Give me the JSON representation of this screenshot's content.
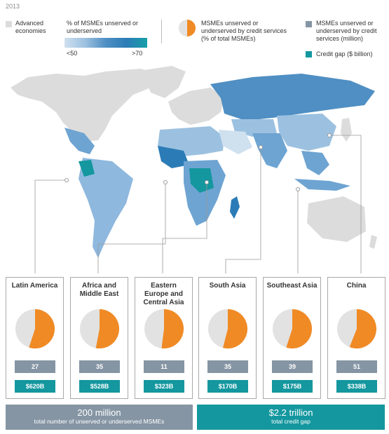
{
  "year": "2013",
  "legend": {
    "advanced_label": "Advanced economies",
    "advanced_color": "#dcdcdc",
    "pct_title": "% of MSMEs unserved or underserved",
    "pct_min_label": "<50",
    "pct_max_label": ">70",
    "pie_label": "MSMEs unserved or underserved by credit services (% of total MSMEs)",
    "count_label": "MSMEs unserved or underserved by credit services (million)",
    "count_color": "#8595a4",
    "gap_label": "Credit gap ($ billion)",
    "gap_color": "#14979f"
  },
  "regions": [
    {
      "name": "Latin America",
      "count": "27",
      "gap": "$620B",
      "share": 0.55
    },
    {
      "name": "Africa and Middle East",
      "count": "35",
      "gap": "$528B",
      "share": 0.53
    },
    {
      "name": "Eastern Europe and Central Asia",
      "count": "11",
      "gap": "$323B",
      "share": 0.52
    },
    {
      "name": "South Asia",
      "count": "35",
      "gap": "$170B",
      "share": 0.54
    },
    {
      "name": "Southeast Asia",
      "count": "39",
      "gap": "$175B",
      "share": 0.55
    },
    {
      "name": "China",
      "count": "51",
      "gap": "$338B",
      "share": 0.56
    }
  ],
  "totals": {
    "msme_value": "200 million",
    "msme_label": "total number of unserved or underserved MSMEs",
    "gap_value": "$2.2 trillion",
    "gap_label": "total credit gap"
  },
  "pie_colors": {
    "filled": "#f08a24",
    "rest": "#e2e2e2"
  }
}
